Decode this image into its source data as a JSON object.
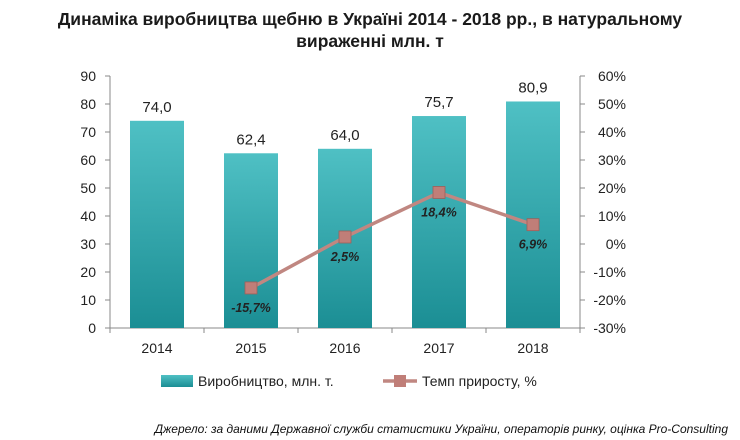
{
  "title_line1": "Динаміка виробництва щебню в Україні 2014 - 2018 рр., в натуральному",
  "title_line2": "вираженні млн. т",
  "source": "Джерело: за даними Державної служби статистики України, операторів ринку, оцінка Pro-Consulting",
  "colors": {
    "bar": "#1b8e94",
    "bar_light": "#4fc0c4",
    "line": "#c08781",
    "marker": "#c07e78",
    "axis": "#888888"
  },
  "chart_data": {
    "type": "bar",
    "title": "Динаміка виробництва щебню в Україні 2014 - 2018 рр., в натуральному вираженні млн. т",
    "categories": [
      "2014",
      "2015",
      "2016",
      "2017",
      "2018"
    ],
    "series": [
      {
        "name": "Виробництво, млн. т.",
        "type": "bar",
        "axis": "left",
        "values": [
          74.0,
          62.4,
          64.0,
          75.7,
          80.9
        ],
        "labels": [
          "74,0",
          "62,4",
          "64,0",
          "75,7",
          "80,9"
        ]
      },
      {
        "name": "Темп приросту, %",
        "type": "line",
        "axis": "right",
        "values": [
          null,
          -15.7,
          2.5,
          18.4,
          6.9
        ],
        "labels": [
          "",
          "-15,7%",
          "2,5%",
          "18,4%",
          "6,9%"
        ]
      }
    ],
    "y_left": {
      "min": 0,
      "max": 90,
      "step": 10,
      "ticks": [
        "0",
        "10",
        "20",
        "30",
        "40",
        "50",
        "60",
        "70",
        "80",
        "90"
      ]
    },
    "y_right": {
      "min": -30,
      "max": 60,
      "step": 10,
      "ticks": [
        "-30%",
        "-20%",
        "-10%",
        "0%",
        "10%",
        "20%",
        "30%",
        "40%",
        "50%",
        "60%"
      ]
    },
    "grid": false,
    "legend_position": "bottom"
  }
}
